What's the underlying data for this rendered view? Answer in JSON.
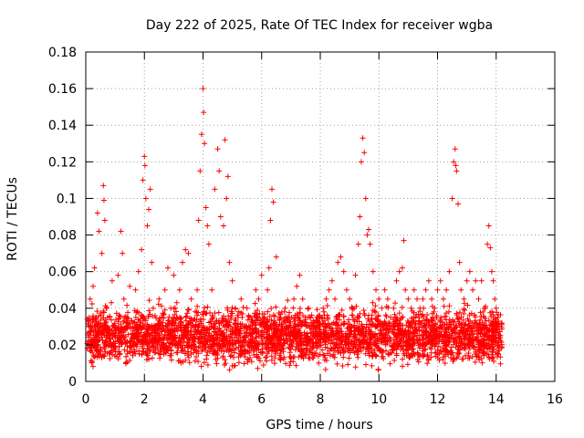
{
  "chart_data": {
    "type": "scatter",
    "title": "Day 222 of 2025, Rate Of TEC Index for receiver wgba",
    "xlabel": "GPS time / hours",
    "ylabel": "ROTI / TECUs",
    "xlim": [
      0,
      16
    ],
    "ylim": [
      0,
      0.18
    ],
    "x_ticks": [
      "0",
      "2",
      "4",
      "6",
      "8",
      "10",
      "12",
      "14",
      "16"
    ],
    "y_ticks": [
      "0",
      "0.02",
      "0.04",
      "0.06",
      "0.08",
      "0.1",
      "0.12",
      "0.14",
      "0.16",
      "0.18"
    ],
    "grid": true,
    "marker": "+",
    "color": "#ff0000",
    "series": [
      {
        "name": "ROTI",
        "points": [
          [
            0.05,
            0.018
          ],
          [
            0.1,
            0.03
          ],
          [
            0.15,
            0.045
          ],
          [
            0.2,
            0.022
          ],
          [
            0.25,
            0.052
          ],
          [
            0.3,
            0.062
          ],
          [
            0.35,
            0.035
          ],
          [
            0.4,
            0.092
          ],
          [
            0.45,
            0.082
          ],
          [
            0.5,
            0.028
          ],
          [
            0.55,
            0.07
          ],
          [
            0.6,
            0.107
          ],
          [
            0.62,
            0.099
          ],
          [
            0.65,
            0.088
          ],
          [
            0.7,
            0.04
          ],
          [
            0.8,
            0.025
          ],
          [
            0.9,
            0.055
          ],
          [
            1.0,
            0.03
          ],
          [
            1.1,
            0.058
          ],
          [
            1.2,
            0.082
          ],
          [
            1.25,
            0.07
          ],
          [
            1.3,
            0.045
          ],
          [
            1.4,
            0.035
          ],
          [
            1.5,
            0.052
          ],
          [
            1.6,
            0.03
          ],
          [
            1.7,
            0.05
          ],
          [
            1.8,
            0.06
          ],
          [
            1.9,
            0.072
          ],
          [
            1.95,
            0.11
          ],
          [
            2.0,
            0.123
          ],
          [
            2.02,
            0.118
          ],
          [
            2.05,
            0.1
          ],
          [
            2.1,
            0.085
          ],
          [
            2.15,
            0.094
          ],
          [
            2.2,
            0.105
          ],
          [
            2.25,
            0.065
          ],
          [
            2.3,
            0.04
          ],
          [
            2.4,
            0.03
          ],
          [
            2.5,
            0.045
          ],
          [
            2.6,
            0.035
          ],
          [
            2.7,
            0.05
          ],
          [
            2.8,
            0.062
          ],
          [
            2.9,
            0.04
          ],
          [
            3.0,
            0.058
          ],
          [
            3.1,
            0.035
          ],
          [
            3.2,
            0.05
          ],
          [
            3.3,
            0.065
          ],
          [
            3.4,
            0.072
          ],
          [
            3.5,
            0.07
          ],
          [
            3.6,
            0.045
          ],
          [
            3.7,
            0.03
          ],
          [
            3.8,
            0.05
          ],
          [
            3.85,
            0.088
          ],
          [
            3.9,
            0.115
          ],
          [
            3.95,
            0.135
          ],
          [
            4.0,
            0.16
          ],
          [
            4.02,
            0.147
          ],
          [
            4.05,
            0.13
          ],
          [
            4.1,
            0.095
          ],
          [
            4.15,
            0.085
          ],
          [
            4.2,
            0.075
          ],
          [
            4.3,
            0.05
          ],
          [
            4.4,
            0.105
          ],
          [
            4.5,
            0.127
          ],
          [
            4.55,
            0.115
          ],
          [
            4.6,
            0.09
          ],
          [
            4.7,
            0.085
          ],
          [
            4.75,
            0.132
          ],
          [
            4.8,
            0.1
          ],
          [
            4.85,
            0.112
          ],
          [
            4.9,
            0.065
          ],
          [
            5.0,
            0.055
          ],
          [
            5.1,
            0.04
          ],
          [
            5.2,
            0.035
          ],
          [
            5.3,
            0.045
          ],
          [
            5.4,
            0.03
          ],
          [
            5.5,
            0.04
          ],
          [
            5.6,
            0.035
          ],
          [
            5.7,
            0.028
          ],
          [
            5.8,
            0.05
          ],
          [
            5.9,
            0.045
          ],
          [
            6.0,
            0.058
          ],
          [
            6.1,
            0.035
          ],
          [
            6.2,
            0.05
          ],
          [
            6.25,
            0.062
          ],
          [
            6.3,
            0.088
          ],
          [
            6.35,
            0.105
          ],
          [
            6.4,
            0.098
          ],
          [
            6.5,
            0.068
          ],
          [
            6.6,
            0.035
          ],
          [
            6.7,
            0.03
          ],
          [
            6.8,
            0.04
          ],
          [
            6.9,
            0.035
          ],
          [
            7.0,
            0.028
          ],
          [
            7.1,
            0.045
          ],
          [
            7.2,
            0.052
          ],
          [
            7.3,
            0.058
          ],
          [
            7.4,
            0.045
          ],
          [
            7.5,
            0.035
          ],
          [
            7.6,
            0.04
          ],
          [
            7.7,
            0.03
          ],
          [
            7.8,
            0.025
          ],
          [
            7.9,
            0.035
          ],
          [
            8.0,
            0.03
          ],
          [
            8.1,
            0.04
          ],
          [
            8.2,
            0.045
          ],
          [
            8.3,
            0.05
          ],
          [
            8.4,
            0.055
          ],
          [
            8.5,
            0.045
          ],
          [
            8.6,
            0.065
          ],
          [
            8.7,
            0.068
          ],
          [
            8.8,
            0.06
          ],
          [
            8.9,
            0.05
          ],
          [
            9.0,
            0.045
          ],
          [
            9.1,
            0.04
          ],
          [
            9.2,
            0.058
          ],
          [
            9.3,
            0.075
          ],
          [
            9.35,
            0.09
          ],
          [
            9.4,
            0.12
          ],
          [
            9.45,
            0.133
          ],
          [
            9.5,
            0.125
          ],
          [
            9.55,
            0.1
          ],
          [
            9.6,
            0.08
          ],
          [
            9.65,
            0.083
          ],
          [
            9.7,
            0.075
          ],
          [
            9.8,
            0.06
          ],
          [
            9.9,
            0.05
          ],
          [
            10.0,
            0.045
          ],
          [
            10.1,
            0.04
          ],
          [
            10.2,
            0.05
          ],
          [
            10.3,
            0.045
          ],
          [
            10.4,
            0.035
          ],
          [
            10.5,
            0.04
          ],
          [
            10.6,
            0.055
          ],
          [
            10.7,
            0.06
          ],
          [
            10.8,
            0.062
          ],
          [
            10.85,
            0.077
          ],
          [
            10.9,
            0.05
          ],
          [
            11.0,
            0.045
          ],
          [
            11.1,
            0.04
          ],
          [
            11.2,
            0.05
          ],
          [
            11.3,
            0.045
          ],
          [
            11.4,
            0.04
          ],
          [
            11.5,
            0.045
          ],
          [
            11.6,
            0.05
          ],
          [
            11.7,
            0.055
          ],
          [
            11.8,
            0.045
          ],
          [
            11.9,
            0.04
          ],
          [
            12.0,
            0.05
          ],
          [
            12.1,
            0.055
          ],
          [
            12.2,
            0.045
          ],
          [
            12.3,
            0.05
          ],
          [
            12.4,
            0.06
          ],
          [
            12.5,
            0.1
          ],
          [
            12.55,
            0.12
          ],
          [
            12.6,
            0.127
          ],
          [
            12.62,
            0.118
          ],
          [
            12.65,
            0.115
          ],
          [
            12.7,
            0.097
          ],
          [
            12.75,
            0.065
          ],
          [
            12.8,
            0.05
          ],
          [
            12.9,
            0.045
          ],
          [
            13.0,
            0.055
          ],
          [
            13.1,
            0.06
          ],
          [
            13.2,
            0.05
          ],
          [
            13.3,
            0.055
          ],
          [
            13.4,
            0.045
          ],
          [
            13.5,
            0.055
          ],
          [
            13.6,
            0.04
          ],
          [
            13.7,
            0.075
          ],
          [
            13.75,
            0.085
          ],
          [
            13.8,
            0.073
          ],
          [
            13.85,
            0.06
          ],
          [
            13.9,
            0.055
          ],
          [
            13.95,
            0.045
          ],
          [
            14.0,
            0.04
          ],
          [
            14.05,
            0.035
          ],
          [
            14.1,
            0.03
          ],
          [
            14.15,
            0.025
          ]
        ]
      }
    ],
    "band": {
      "x_range": [
        0.05,
        14.2
      ],
      "y_range": [
        0.005,
        0.045
      ],
      "density_per_hour": 230
    }
  }
}
